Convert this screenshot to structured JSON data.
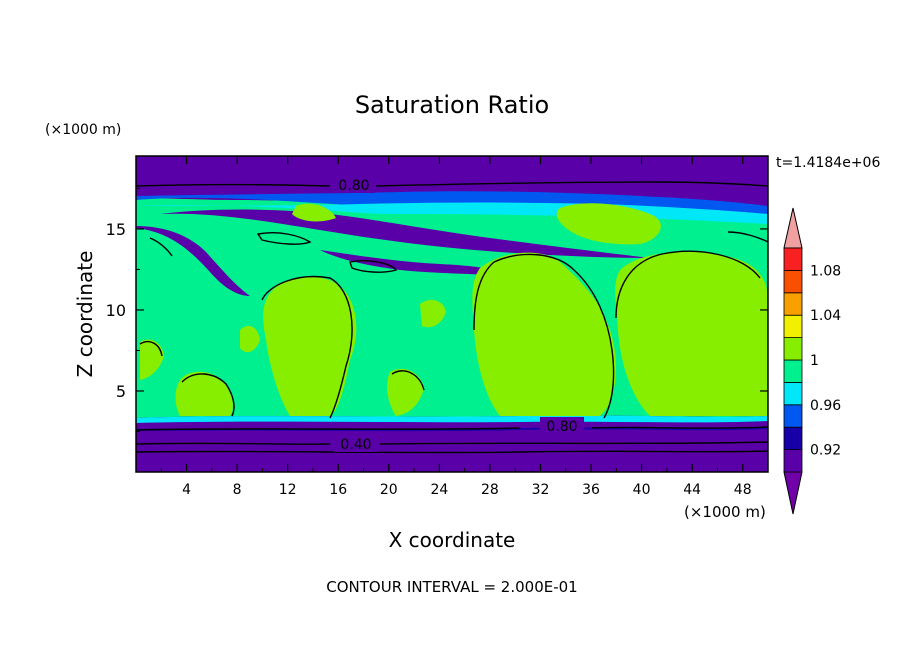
{
  "chart_data": {
    "type": "heatmap",
    "title": "Saturation Ratio",
    "xlabel": "X coordinate",
    "ylabel": "Z coordinate",
    "x_unit": "(×1000 m)",
    "y_unit": "(×1000 m)",
    "xlim": [
      0,
      50
    ],
    "ylim": [
      0,
      19.5
    ],
    "x_ticks": [
      "4",
      "8",
      "12",
      "16",
      "20",
      "24",
      "28",
      "32",
      "36",
      "40",
      "44",
      "48"
    ],
    "y_ticks": [
      "5",
      "10",
      "15"
    ],
    "time_label": "t=1.4184e+06",
    "footer": "CONTOUR INTERVAL = 2.000E-01",
    "contour_labels": [
      "0.80",
      "0.80",
      "0.40"
    ],
    "colorbar": {
      "labels": [
        "0.92",
        "0.96",
        "1",
        "1.04",
        "1.08"
      ],
      "levels": [
        0.9,
        0.92,
        0.94,
        0.96,
        0.98,
        1.0,
        1.02,
        1.04,
        1.06,
        1.08,
        1.1
      ],
      "colors": [
        "#5a00a8",
        "#1800a8",
        "#0058f0",
        "#00e8f8",
        "#00f090",
        "#88ee00",
        "#f0f000",
        "#f8a000",
        "#f85000",
        "#f82020"
      ],
      "under_color": "#7000a8",
      "over_color": "#f0a0a0"
    }
  }
}
